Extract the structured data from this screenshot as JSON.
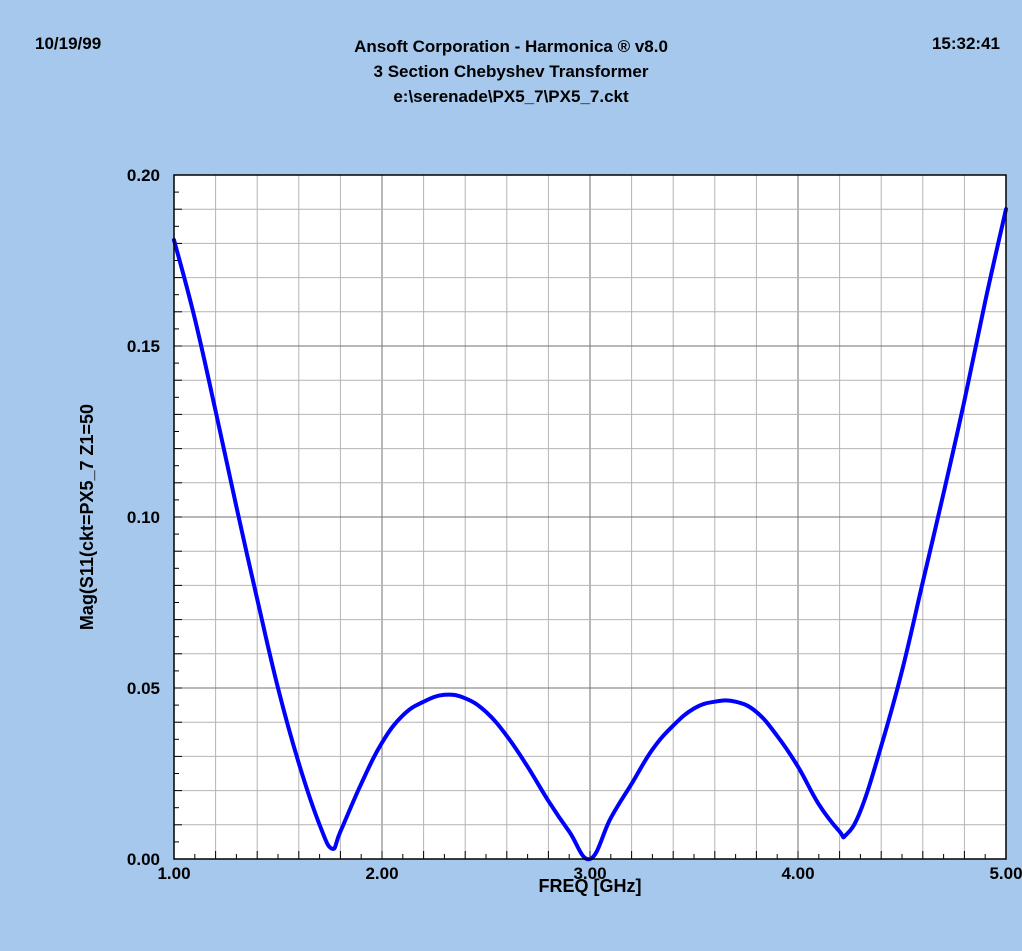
{
  "header": {
    "date": "10/19/99",
    "time": "15:32:41",
    "title_line1": "Ansoft Corporation - Harmonica ® v8.0",
    "title_line2": "3 Section Chebyshev Transformer",
    "title_line3": "e:\\serenade\\PX5_7\\PX5_7.ckt"
  },
  "colors": {
    "background": "#a6c8ed",
    "plot_area": "#ffffff",
    "curve": "#0000ff",
    "grid": "#b4b4b4",
    "major_grid": "#707070"
  },
  "chart_data": {
    "type": "line",
    "xlabel": "FREQ [GHz]",
    "ylabel": "Mag(S11(ckt=PX5_7 Z1=50",
    "xlim": [
      1.0,
      5.0
    ],
    "ylim": [
      0.0,
      0.2
    ],
    "x_ticks": [
      "1.00",
      "2.00",
      "3.00",
      "4.00",
      "5.00"
    ],
    "y_ticks": [
      "0.00",
      "0.05",
      "0.10",
      "0.15",
      "0.20"
    ],
    "grid": true,
    "series": [
      {
        "x": [
          1.0,
          1.1,
          1.2,
          1.3,
          1.4,
          1.5,
          1.6,
          1.7,
          1.76,
          1.8,
          1.9,
          2.0,
          2.1,
          2.2,
          2.3,
          2.4,
          2.5,
          2.6,
          2.7,
          2.8,
          2.9,
          3.0,
          3.1,
          3.2,
          3.3,
          3.4,
          3.5,
          3.6,
          3.7,
          3.8,
          3.9,
          4.0,
          4.1,
          4.2,
          4.23,
          4.3,
          4.4,
          4.5,
          4.6,
          4.7,
          4.8,
          4.9,
          5.0
        ],
        "values": [
          0.181,
          0.158,
          0.131,
          0.103,
          0.076,
          0.05,
          0.028,
          0.01,
          0.003,
          0.008,
          0.022,
          0.034,
          0.042,
          0.046,
          0.048,
          0.047,
          0.043,
          0.036,
          0.027,
          0.017,
          0.008,
          0.0,
          0.012,
          0.022,
          0.032,
          0.039,
          0.044,
          0.046,
          0.046,
          0.043,
          0.036,
          0.027,
          0.016,
          0.008,
          0.007,
          0.014,
          0.033,
          0.055,
          0.081,
          0.107,
          0.134,
          0.163,
          0.19
        ]
      }
    ]
  }
}
